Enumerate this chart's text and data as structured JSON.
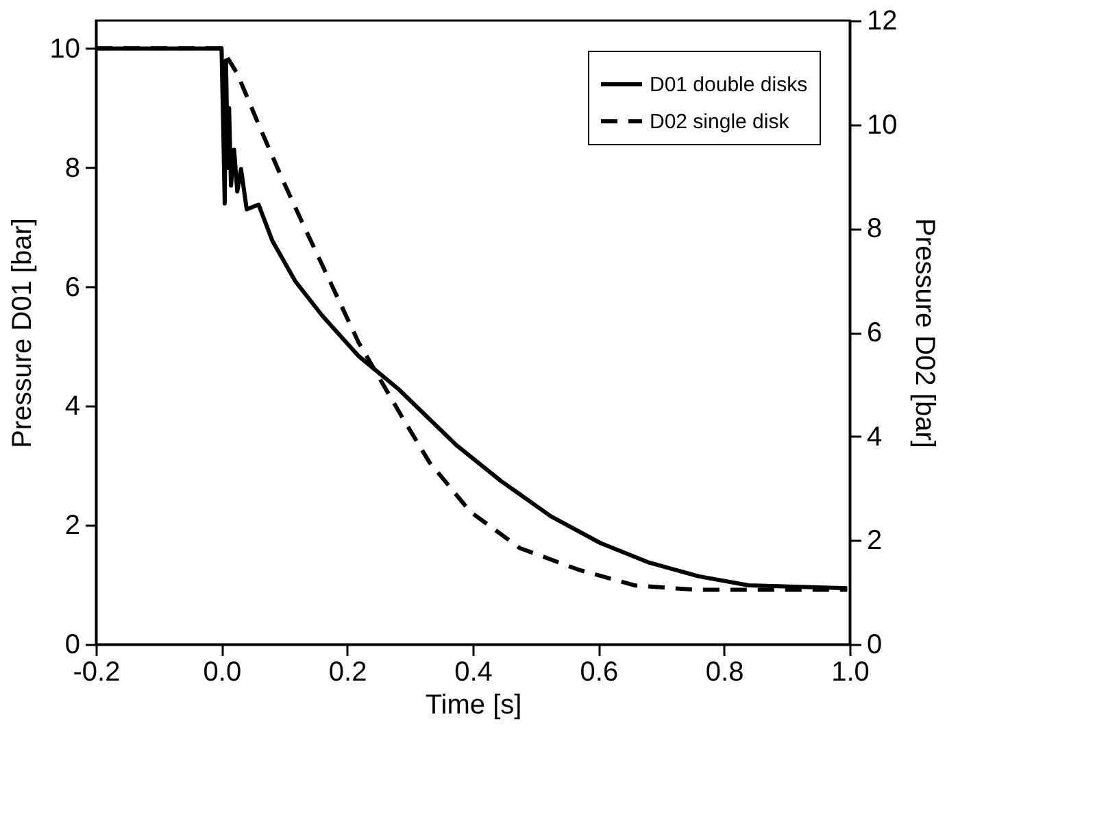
{
  "chart_data": {
    "type": "line",
    "xlabel": "Time  [s]",
    "ylabel": "Pressure D01  [bar]",
    "y2label": "Pressure D02 [bar]",
    "xlim": [
      -0.2,
      1.0
    ],
    "xticks": [
      {
        "value": -0.2,
        "label": "-0.2"
      },
      {
        "value": 0,
        "label": "0.0"
      },
      {
        "value": 0.2,
        "label": "0.2"
      },
      {
        "value": 0.4,
        "label": "0.4"
      },
      {
        "value": 0.6,
        "label": "0.6"
      },
      {
        "value": 0.8,
        "label": "0.8"
      },
      {
        "value": 1,
        "label": "1.0"
      }
    ],
    "ylim": [
      0,
      10.47
    ],
    "yticks": [
      0,
      2,
      4,
      6,
      8,
      10
    ],
    "y2lim": [
      0,
      12
    ],
    "y2ticks": [
      0,
      2,
      4,
      6,
      8,
      10,
      12
    ],
    "grid": false,
    "legend": "top right",
    "marker": "none",
    "series": [
      {
        "name": "D01 double disks",
        "color": "#000000",
        "line_style": "solid",
        "x": [
          -0.2,
          0.0,
          0.003,
          0.005,
          0.007,
          0.01,
          0.012,
          0.015,
          0.02,
          0.025,
          0.031,
          0.04,
          0.059,
          0.081,
          0.117,
          0.16,
          0.218,
          0.282,
          0.374,
          0.445,
          0.524,
          0.603,
          0.681,
          0.76,
          0.839,
          0.996
        ],
        "values": [
          10.0,
          10.0,
          8.5,
          7.4,
          9.8,
          8.0,
          9.0,
          7.7,
          8.3,
          7.6,
          7.98,
          7.3,
          7.38,
          6.77,
          6.1,
          5.52,
          4.84,
          4.28,
          3.34,
          2.74,
          2.15,
          1.7,
          1.37,
          1.14,
          0.99,
          0.94
        ]
      },
      {
        "name": "D02  single disk",
        "color": "#000000",
        "line_style": "dashed",
        "axis": "y2",
        "x": [
          -0.2,
          0.0,
          0.025,
          0.059,
          0.096,
          0.132,
          0.175,
          0.218,
          0.289,
          0.331,
          0.396,
          0.475,
          0.567,
          0.659,
          0.753,
          0.846,
          0.931,
          0.996
        ],
        "values": [
          11.47,
          11.47,
          10.98,
          10.0,
          8.97,
          8.02,
          6.92,
          5.81,
          4.34,
          3.5,
          2.55,
          1.85,
          1.44,
          1.13,
          1.05,
          1.05,
          1.05,
          1.05
        ]
      }
    ]
  }
}
